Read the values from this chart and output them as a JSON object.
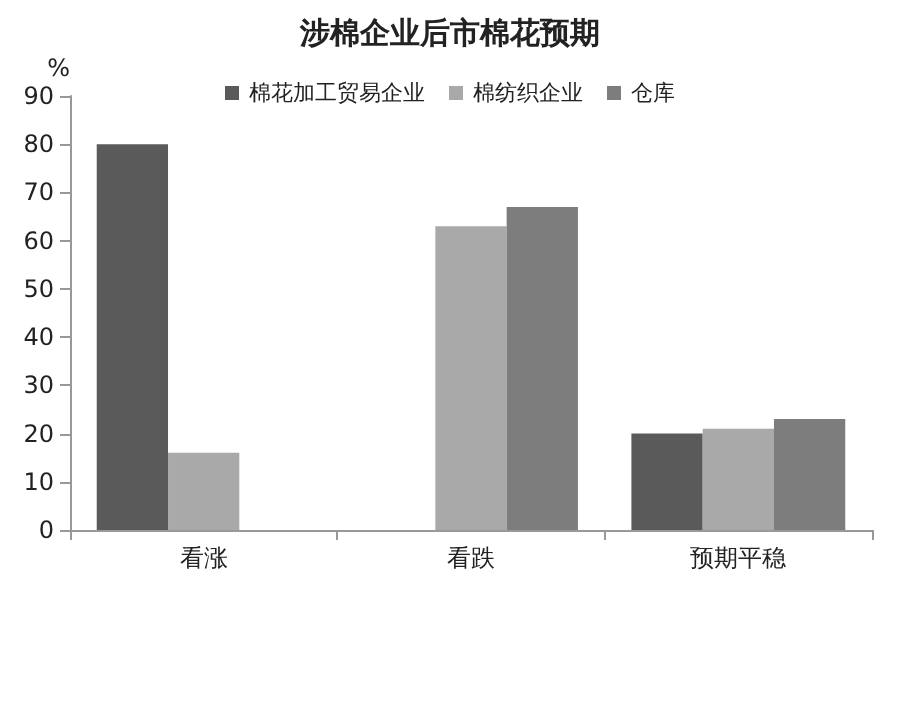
{
  "chart_data": {
    "type": "bar",
    "title": "涉棉企业后市棉花预期",
    "ylabel": "%",
    "categories": [
      "看涨",
      "看跌",
      "预期平稳"
    ],
    "series": [
      {
        "name": "棉花加工贸易企业",
        "color": "#5a5a5a",
        "values": [
          80,
          null,
          20
        ]
      },
      {
        "name": "棉纺织企业",
        "color": "#a9a9a9",
        "values": [
          16,
          63,
          21
        ]
      },
      {
        "name": "仓库",
        "color": "#7d7d7d",
        "values": [
          null,
          67,
          23
        ]
      }
    ],
    "ylim": [
      0,
      90
    ],
    "yticks": [
      0,
      10,
      20,
      30,
      40,
      50,
      60,
      70,
      80,
      90
    ],
    "grid": false,
    "legend": "top"
  }
}
